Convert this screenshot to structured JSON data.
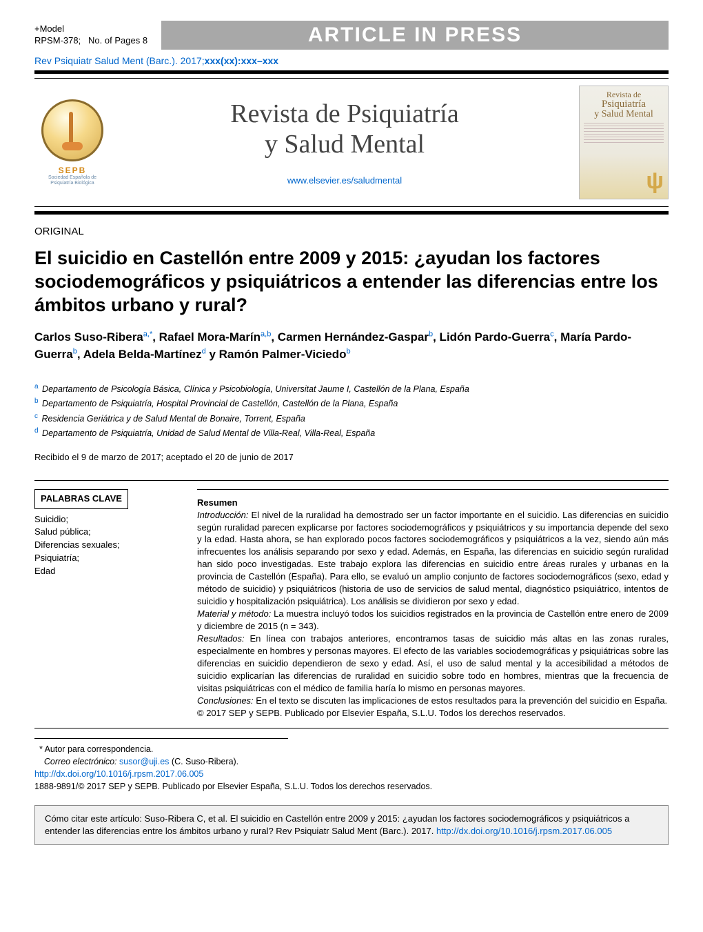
{
  "header": {
    "model_line1": "+Model",
    "model_line2_a": "RPSM-378;",
    "model_line2_b": "No. of Pages 8",
    "aip": "ARTICLE IN PRESS",
    "citation_prefix": "Rev Psiquiatr Salud Ment (Barc.). 2017;",
    "citation_suffix": "xxx(xx):xxx–xxx"
  },
  "masthead": {
    "logo_label": "SEPB",
    "logo_sub": "Sociedad Española de\nPsiquiatría Biológica",
    "journal_title_1": "Revista de Psiquiatría",
    "journal_title_2": "y Salud Mental",
    "url": "www.elsevier.es/saludmental",
    "cover_title_1": "Revista de",
    "cover_title_2": "Psiquiatría",
    "cover_title_3": "y Salud Mental"
  },
  "article": {
    "section": "ORIGINAL",
    "title": "El suicidio en Castellón entre 2009 y 2015: ¿ayudan los factores sociodemográficos y psiquiátricos a entender las diferencias entre los ámbitos urbano y rural?",
    "authors_html": "Carlos Suso-Ribera<sup>a,*</sup>, Rafael Mora-Marín<sup>a,b</sup>, Carmen Hernández-Gaspar<sup>b</sup>, Lidón Pardo-Guerra<sup>c</sup>, María Pardo-Guerra<sup>b</sup>, Adela Belda-Martínez<sup>d</sup> y Ramón Palmer-Viciedo<sup>b</sup>",
    "affiliations": [
      {
        "sup": "a",
        "text": "Departamento de Psicología Básica, Clínica y Psicobiología, Universitat Jaume I, Castellón de la Plana, España"
      },
      {
        "sup": "b",
        "text": "Departamento de Psiquiatría, Hospital Provincial de Castellón, Castellón de la Plana, España"
      },
      {
        "sup": "c",
        "text": "Residencia Geriátrica y de Salud Mental de Bonaire, Torrent, España"
      },
      {
        "sup": "d",
        "text": "Departamento de Psiquiatría, Unidad de Salud Mental de Villa-Real, Villa-Real, España"
      }
    ],
    "received": "Recibido el 9 de marzo de 2017; aceptado el 20 de junio de 2017"
  },
  "keywords": {
    "heading": "PALABRAS CLAVE",
    "items": [
      "Suicidio;",
      "Salud pública;",
      "Diferencias sexuales;",
      "Psiquiatría;",
      "Edad"
    ]
  },
  "abstract": {
    "heading": "Resumen",
    "intro_label": "Introducción:",
    "intro": " El nivel de la ruralidad ha demostrado ser un factor importante en el suicidio. Las diferencias en suicidio según ruralidad parecen explicarse por factores sociodemográficos y psiquiátricos y su importancia depende del sexo y la edad. Hasta ahora, se han explorado pocos factores sociodemográficos y psiquiátricos a la vez, siendo aún más infrecuentes los análisis separando por sexo y edad. Además, en España, las diferencias en suicidio según ruralidad han sido poco investigadas. Este trabajo explora las diferencias en suicidio entre áreas rurales y urbanas en la provincia de Castellón (España). Para ello, se evaluó un amplio conjunto de factores sociodemográficos (sexo, edad y método de suicidio) y psiquiátricos (historia de uso de servicios de salud mental, diagnóstico psiquiátrico, intentos de suicidio y hospitalización psiquiátrica). Los análisis se dividieron por sexo y edad.",
    "methods_label": "Material y método:",
    "methods": " La muestra incluyó todos los suicidios registrados en la provincia de Castellón entre enero de 2009 y diciembre de 2015 (n = 343).",
    "results_label": "Resultados:",
    "results": " En línea con trabajos anteriores, encontramos tasas de suicidio más altas en las zonas rurales, especialmente en hombres y personas mayores. El efecto de las variables sociodemográficas y psiquiátricas sobre las diferencias en suicidio dependieron de sexo y edad. Así, el uso de salud mental y la accesibilidad a métodos de suicidio explicarían las diferencias de ruralidad en suicidio sobre todo en hombres, mientras que la frecuencia de visitas psiquiátricas con el médico de familia haría lo mismo en personas mayores.",
    "concl_label": "Conclusiones:",
    "concl": " En el texto se discuten las implicaciones de estos resultados para la prevención del suicidio en España.",
    "copyright": "© 2017 SEP y SEPB. Publicado por Elsevier España, S.L.U. Todos los derechos reservados."
  },
  "footnotes": {
    "corr": "Autor para correspondencia.",
    "email_label": "Correo electrónico:",
    "email": "susor@uji.es",
    "email_author": " (C. Suso-Ribera).",
    "doi": "http://dx.doi.org/10.1016/j.rpsm.2017.06.005",
    "issn": "1888-9891/© 2017 SEP y SEPB. Publicado por Elsevier España, S.L.U. Todos los derechos reservados."
  },
  "citation_box": {
    "text_a": "Cómo citar este artículo: Suso-Ribera C, et al. El suicidio en Castellón entre 2009 y 2015: ¿ayudan los factores sociodemográficos y psiquiátricos a entender las diferencias entre los ámbitos urbano y rural? Rev Psiquiatr Salud Ment (Barc.). 2017. ",
    "link": "http://dx.doi.org/10.1016/j.rpsm.2017.06.005"
  }
}
